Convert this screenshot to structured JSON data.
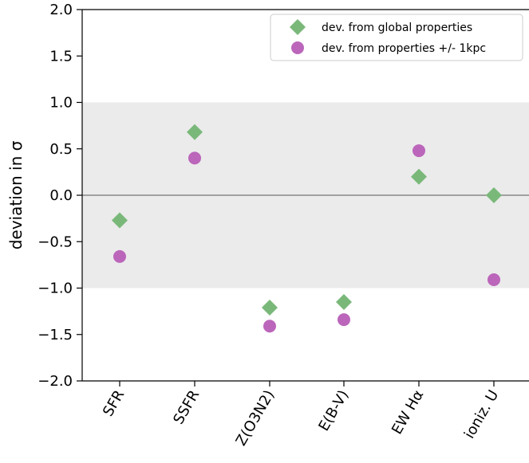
{
  "chart_data": {
    "type": "scatter",
    "categories": [
      "SFR",
      "SSFR",
      "Z(O3N2)",
      "E(B-V)",
      "EW Hα",
      "ioniz. U"
    ],
    "ylabel": "deviation in σ",
    "xlabel": "",
    "ylim": [
      -2.0,
      2.0
    ],
    "yticks": [
      "−2.0",
      "−1.5",
      "−1.0",
      "−0.5",
      "0.0",
      "0.5",
      "1.0",
      "1.5",
      "2.0"
    ],
    "ytick_values": [
      -2.0,
      -1.5,
      -1.0,
      -0.5,
      0.0,
      0.5,
      1.0,
      1.5,
      2.0
    ],
    "shaded_band": [
      -1.0,
      1.0
    ],
    "reference_line": 0.0,
    "grid": false,
    "legend_position": "top-right",
    "series": [
      {
        "name": "dev. from global properties",
        "marker": "diamond",
        "color": "#7ab87a",
        "values": [
          -0.27,
          0.68,
          -1.21,
          -1.15,
          0.2,
          0.0
        ]
      },
      {
        "name": "dev. from properties +/- 1kpc",
        "marker": "circle",
        "color": "#bb66bb",
        "values": [
          -0.66,
          0.4,
          -1.41,
          -1.34,
          0.48,
          -0.91
        ]
      }
    ]
  }
}
